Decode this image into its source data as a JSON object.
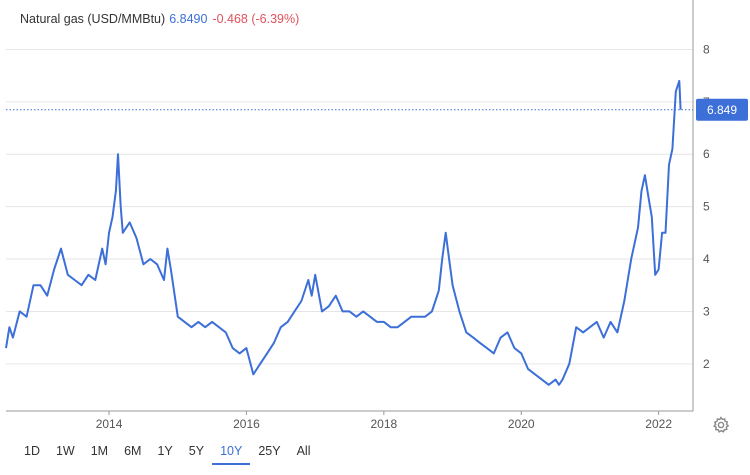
{
  "header": {
    "name": "Natural gas (USD/MMBtu)",
    "price": "6.8490",
    "change": "-0.468 (-6.39%)"
  },
  "price_tag": "6.849",
  "range_buttons": [
    {
      "label": "1D",
      "active": false
    },
    {
      "label": "1W",
      "active": false
    },
    {
      "label": "1M",
      "active": false
    },
    {
      "label": "6M",
      "active": false
    },
    {
      "label": "1Y",
      "active": false
    },
    {
      "label": "5Y",
      "active": false
    },
    {
      "label": "10Y",
      "active": true
    },
    {
      "label": "25Y",
      "active": false
    },
    {
      "label": "All",
      "active": false
    }
  ],
  "icons": {
    "settings": "gear-icon"
  },
  "colors": {
    "line": "#3c6fd8",
    "price": "#3c6fd8",
    "change": "#e0525b",
    "tag_bg": "#3c6fd8"
  },
  "chart_data": {
    "type": "line",
    "title": "Natural gas (USD/MMBtu)",
    "xlabel": "",
    "ylabel": "",
    "x_ticks": [
      "2014",
      "2016",
      "2018",
      "2020",
      "2022"
    ],
    "y_ticks": [
      2,
      3,
      4,
      5,
      6,
      7,
      8
    ],
    "xlim": [
      2012.5,
      2022.5
    ],
    "ylim": [
      1.1,
      8.6
    ],
    "grid": "horizontal",
    "last_value": 6.849,
    "series": [
      {
        "x": [
          2012.5,
          2012.55,
          2012.6,
          2012.7,
          2012.8,
          2012.9,
          2013.0,
          2013.1,
          2013.2,
          2013.3,
          2013.4,
          2013.5,
          2013.6,
          2013.7,
          2013.8,
          2013.9,
          2013.95,
          2014.0,
          2014.05,
          2014.1,
          2014.13,
          2014.17,
          2014.2,
          2014.3,
          2014.4,
          2014.5,
          2014.6,
          2014.7,
          2014.8,
          2014.85,
          2014.9,
          2015.0,
          2015.1,
          2015.2,
          2015.3,
          2015.4,
          2015.5,
          2015.6,
          2015.7,
          2015.8,
          2015.9,
          2016.0,
          2016.1,
          2016.15,
          2016.2,
          2016.3,
          2016.4,
          2016.5,
          2016.6,
          2016.7,
          2016.8,
          2016.9,
          2016.95,
          2017.0,
          2017.1,
          2017.2,
          2017.3,
          2017.4,
          2017.5,
          2017.6,
          2017.7,
          2017.8,
          2017.9,
          2018.0,
          2018.1,
          2018.2,
          2018.3,
          2018.4,
          2018.5,
          2018.6,
          2018.7,
          2018.75,
          2018.8,
          2018.85,
          2018.9,
          2018.95,
          2019.0,
          2019.1,
          2019.2,
          2019.3,
          2019.4,
          2019.5,
          2019.6,
          2019.7,
          2019.8,
          2019.9,
          2020.0,
          2020.1,
          2020.2,
          2020.3,
          2020.4,
          2020.5,
          2020.55,
          2020.6,
          2020.7,
          2020.8,
          2020.9,
          2021.0,
          2021.1,
          2021.2,
          2021.3,
          2021.4,
          2021.5,
          2021.6,
          2021.7,
          2021.75,
          2021.8,
          2021.85,
          2021.9,
          2021.95,
          2022.0,
          2022.05,
          2022.1,
          2022.15,
          2022.2,
          2022.25,
          2022.3,
          2022.32
        ],
        "values": [
          2.3,
          2.7,
          2.5,
          3.0,
          2.9,
          3.5,
          3.5,
          3.3,
          3.8,
          4.2,
          3.7,
          3.6,
          3.5,
          3.7,
          3.6,
          4.2,
          3.9,
          4.5,
          4.8,
          5.3,
          6.0,
          5.0,
          4.5,
          4.7,
          4.4,
          3.9,
          4.0,
          3.9,
          3.6,
          4.2,
          3.8,
          2.9,
          2.8,
          2.7,
          2.8,
          2.7,
          2.8,
          2.7,
          2.6,
          2.3,
          2.2,
          2.3,
          1.8,
          1.9,
          2.0,
          2.2,
          2.4,
          2.7,
          2.8,
          3.0,
          3.2,
          3.6,
          3.3,
          3.7,
          3.0,
          3.1,
          3.3,
          3.0,
          3.0,
          2.9,
          3.0,
          2.9,
          2.8,
          2.8,
          2.7,
          2.7,
          2.8,
          2.9,
          2.9,
          2.9,
          3.0,
          3.2,
          3.4,
          4.0,
          4.5,
          4.0,
          3.5,
          3.0,
          2.6,
          2.5,
          2.4,
          2.3,
          2.2,
          2.5,
          2.6,
          2.3,
          2.2,
          1.9,
          1.8,
          1.7,
          1.6,
          1.7,
          1.6,
          1.7,
          2.0,
          2.7,
          2.6,
          2.7,
          2.8,
          2.5,
          2.8,
          2.6,
          3.2,
          4.0,
          4.6,
          5.3,
          5.6,
          5.2,
          4.8,
          3.7,
          3.8,
          4.5,
          4.5,
          5.8,
          6.1,
          7.2,
          7.4,
          6.85
        ]
      }
    ]
  }
}
